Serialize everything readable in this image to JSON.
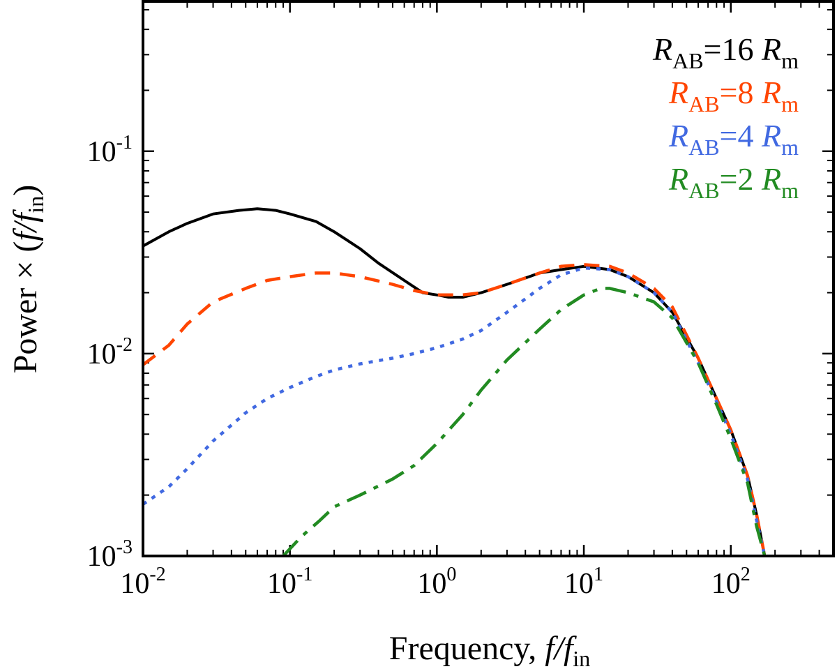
{
  "chart_data": {
    "type": "line",
    "x_scale": "log",
    "y_scale": "log",
    "xlim": [
      0.01,
      500
    ],
    "ylim": [
      0.001,
      0.55
    ],
    "xlabel": {
      "main": "Frequency, ",
      "italic": "f/f",
      "subscript": "in"
    },
    "ylabel": {
      "main": "Power × (",
      "italic": "f/f",
      "subscript": "in",
      "close": ")"
    },
    "x_ticks": [
      {
        "base": "10",
        "exp": "-2"
      },
      {
        "base": "10",
        "exp": "-1"
      },
      {
        "base": "10",
        "exp": "0"
      },
      {
        "base": "10",
        "exp": "1"
      },
      {
        "base": "10",
        "exp": "2"
      }
    ],
    "y_ticks": [
      {
        "base": "10",
        "exp": "-3"
      },
      {
        "base": "10",
        "exp": "-2"
      },
      {
        "base": "10",
        "exp": "-1"
      }
    ],
    "legend_position": "top-right",
    "series": [
      {
        "name": "R_AB=16 R_m",
        "label": {
          "r1": "R",
          "sub1": "AB",
          "mid": "=16 ",
          "r2": "R",
          "sub2": "m"
        },
        "color": "#000000",
        "style": "solid",
        "x": [
          0.01,
          0.015,
          0.02,
          0.03,
          0.045,
          0.06,
          0.08,
          0.1,
          0.15,
          0.2,
          0.3,
          0.4,
          0.6,
          0.8,
          1.0,
          1.2,
          1.5,
          2.0,
          3.0,
          5.0,
          7.0,
          10,
          15,
          20,
          30,
          40,
          60,
          80,
          100,
          130,
          150,
          170
        ],
        "y": [
          0.034,
          0.04,
          0.044,
          0.049,
          0.051,
          0.052,
          0.051,
          0.049,
          0.045,
          0.04,
          0.033,
          0.028,
          0.023,
          0.02,
          0.0195,
          0.019,
          0.019,
          0.02,
          0.022,
          0.025,
          0.026,
          0.027,
          0.026,
          0.024,
          0.02,
          0.016,
          0.0095,
          0.006,
          0.0042,
          0.0025,
          0.0016,
          0.001
        ]
      },
      {
        "name": "R_AB=8 R_m",
        "label": {
          "r1": "R",
          "sub1": "AB",
          "mid": "=8 ",
          "r2": "R",
          "sub2": "m"
        },
        "color": "#ff4500",
        "style": "dashed",
        "x": [
          0.01,
          0.015,
          0.02,
          0.03,
          0.05,
          0.07,
          0.1,
          0.15,
          0.2,
          0.3,
          0.5,
          0.7,
          1.0,
          1.5,
          2.0,
          3.0,
          5.0,
          7.0,
          10,
          15,
          20,
          30,
          40,
          60,
          80,
          100,
          130,
          150,
          170
        ],
        "y": [
          0.0088,
          0.011,
          0.014,
          0.018,
          0.021,
          0.023,
          0.024,
          0.025,
          0.025,
          0.024,
          0.022,
          0.0205,
          0.0195,
          0.0195,
          0.02,
          0.022,
          0.025,
          0.027,
          0.0275,
          0.027,
          0.025,
          0.021,
          0.017,
          0.0095,
          0.006,
          0.0042,
          0.0025,
          0.0016,
          0.001
        ]
      },
      {
        "name": "R_AB=4 R_m",
        "label": {
          "r1": "R",
          "sub1": "AB",
          "mid": "=4 ",
          "r2": "R",
          "sub2": "m"
        },
        "color": "#4169e1",
        "style": "dotted",
        "x": [
          0.01,
          0.015,
          0.02,
          0.03,
          0.05,
          0.07,
          0.1,
          0.15,
          0.2,
          0.3,
          0.5,
          0.7,
          1.0,
          1.5,
          2.0,
          3.0,
          5.0,
          7.0,
          10,
          15,
          20,
          30,
          40,
          60,
          80,
          100,
          130,
          150,
          170
        ],
        "y": [
          0.0018,
          0.0022,
          0.0027,
          0.0037,
          0.0051,
          0.006,
          0.0068,
          0.0077,
          0.0083,
          0.0089,
          0.0095,
          0.01,
          0.0107,
          0.0118,
          0.013,
          0.016,
          0.021,
          0.0245,
          0.0265,
          0.026,
          0.024,
          0.02,
          0.016,
          0.009,
          0.0058,
          0.004,
          0.0024,
          0.0015,
          0.001
        ]
      },
      {
        "name": "R_AB=2 R_m",
        "label": {
          "r1": "R",
          "sub1": "AB",
          "mid": "=2 ",
          "r2": "R",
          "sub2": "m"
        },
        "color": "#228b22",
        "style": "dashdot",
        "x": [
          0.09,
          0.12,
          0.16,
          0.2,
          0.3,
          0.5,
          0.7,
          1.0,
          1.5,
          2.0,
          3.0,
          5.0,
          7.0,
          10,
          13,
          15,
          20,
          30,
          40,
          60,
          80,
          100,
          130,
          150,
          170
        ],
        "y": [
          0.001,
          0.00125,
          0.0015,
          0.00175,
          0.002,
          0.0024,
          0.0028,
          0.0036,
          0.005,
          0.0066,
          0.0093,
          0.0132,
          0.0165,
          0.0195,
          0.021,
          0.021,
          0.02,
          0.018,
          0.015,
          0.009,
          0.0056,
          0.0038,
          0.0023,
          0.0014,
          0.001
        ]
      }
    ]
  }
}
